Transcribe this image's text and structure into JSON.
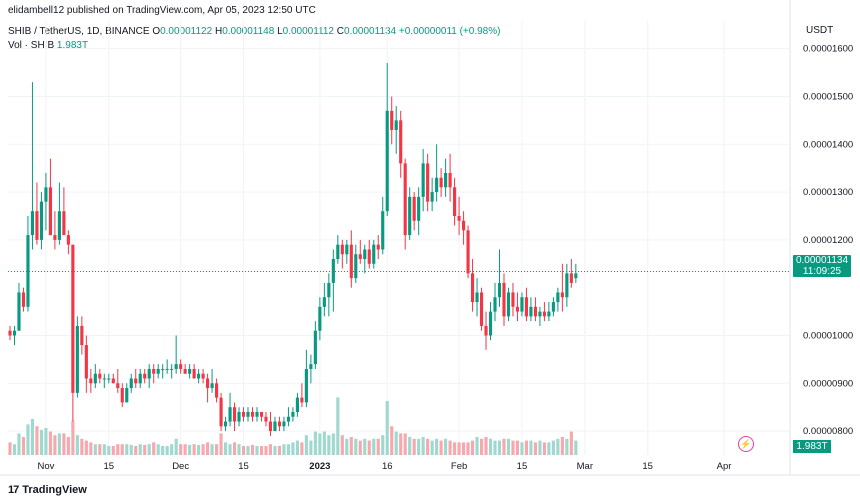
{
  "header": {
    "published": "elidambell12 published on TradingView.com, Apr 05, 2023 12:50 UTC"
  },
  "legend": {
    "symbol": "SHIB / TetherUS, 1D, BINANCE",
    "o_label": "O",
    "o": "0.00001122",
    "h_label": "H",
    "h": "0.00001148",
    "l_label": "L",
    "l": "0.00001112",
    "c_label": "C",
    "c": "0.00001134",
    "change": "+0.00000011 (+0.98%)",
    "vol_label": "Vol · SHIB",
    "vol_value": "1.983T"
  },
  "axis": {
    "currency": "USDT"
  },
  "badges": {
    "price": "0.00001134",
    "countdown": "11:09:25",
    "volume": "1.983T"
  },
  "brand": {
    "logo_text": "TradingView",
    "logo_mark": "17"
  },
  "colors": {
    "up": "#089981",
    "down": "#f23645",
    "up_vol": "#9fd8cf",
    "down_vol": "#f7a8ad",
    "grid": "#f0f3fa"
  },
  "icons": {
    "alert": "lightning-icon",
    "logo": "tradingview-logo-icon"
  },
  "chart_data": {
    "type": "candlestick",
    "y_axis": {
      "ticks": [
        "0.00001600",
        "0.00001500",
        "0.00001400",
        "0.00001300",
        "0.00001200",
        "0.00001000",
        "0.00000900",
        "0.00000800"
      ],
      "tick_values": [
        1.6e-05,
        1.5e-05,
        1.4e-05,
        1.3e-05,
        1.2e-05,
        1e-05,
        9e-06,
        8e-06
      ],
      "range": [
        7.5e-06,
        1.66e-05
      ]
    },
    "x_axis": {
      "labels": [
        "Nov",
        "15",
        "Dec",
        "15",
        "2023",
        "16",
        "Feb",
        "15",
        "Mar",
        "15",
        "Apr"
      ],
      "label_dates": [
        "2022-11-01",
        "2022-11-15",
        "2022-12-01",
        "2022-12-15",
        "2023-01-01",
        "2023-01-16",
        "2023-02-01",
        "2023-02-15",
        "2023-03-01",
        "2023-03-15",
        "2023-04-01"
      ],
      "start_date": "2022-10-24",
      "end_date": "2023-04-05"
    },
    "current_price": 1.134e-05,
    "ohlc": [
      [
        1.01e-05,
        1.02e-05,
        9.9e-06,
        1e-05
      ],
      [
        1e-05,
        1.02e-05,
        9.8e-06,
        1.01e-05
      ],
      [
        1.01e-05,
        1.11e-05,
        1.01e-05,
        1.09e-05
      ],
      [
        1.09e-05,
        1.1e-05,
        1.05e-05,
        1.06e-05
      ],
      [
        1.06e-05,
        1.25e-05,
        1.05e-05,
        1.21e-05
      ],
      [
        1.21e-05,
        1.53e-05,
        1.18e-05,
        1.26e-05
      ],
      [
        1.26e-05,
        1.32e-05,
        1.19e-05,
        1.2e-05
      ],
      [
        1.2e-05,
        1.3e-05,
        1.18e-05,
        1.28e-05
      ],
      [
        1.28e-05,
        1.34e-05,
        1.22e-05,
        1.31e-05
      ],
      [
        1.31e-05,
        1.37e-05,
        1.21e-05,
        1.21e-05
      ],
      [
        1.21e-05,
        1.26e-05,
        1.18e-05,
        1.2e-05
      ],
      [
        1.2e-05,
        1.32e-05,
        1.19e-05,
        1.26e-05
      ],
      [
        1.26e-05,
        1.31e-05,
        1.21e-05,
        1.21e-05
      ],
      [
        1.21e-05,
        1.22e-05,
        1.17e-05,
        1.19e-05
      ],
      [
        1.19e-05,
        1.19e-05,
        8.2e-06,
        8.8e-06
      ],
      [
        8.8e-06,
        1.04e-05,
        8.7e-06,
        1.02e-05
      ],
      [
        1.02e-05,
        1.04e-05,
        9.6e-06,
        9.8e-06
      ],
      [
        9.8e-06,
        1e-05,
        8.8e-06,
        9.1e-06
      ],
      [
        9.1e-06,
        9.3e-06,
        8.8e-06,
        9e-06
      ],
      [
        9e-06,
        9.4e-06,
        8.9e-06,
        9.2e-06
      ],
      [
        9.2e-06,
        9.3e-06,
        9e-06,
        9.1e-06
      ],
      [
        9.1e-06,
        9.2e-06,
        8.9e-06,
        9.1e-06
      ],
      [
        9.1e-06,
        9.2e-06,
        9e-06,
        9.1e-06
      ],
      [
        9.1e-06,
        9.2e-06,
        9e-06,
        9e-06
      ],
      [
        9e-06,
        9.3e-06,
        8.8e-06,
        8.9e-06
      ],
      [
        8.9e-06,
        9e-06,
        8.5e-06,
        8.6e-06
      ],
      [
        8.6e-06,
        9e-06,
        8.6e-06,
        8.9e-06
      ],
      [
        8.9e-06,
        9.2e-06,
        8.8e-06,
        9.1e-06
      ],
      [
        9.1e-06,
        9.3e-06,
        8.9e-06,
        9e-06
      ],
      [
        9e-06,
        9.3e-06,
        8.9e-06,
        9.2e-06
      ],
      [
        9.2e-06,
        9.3e-06,
        9e-06,
        9.1e-06
      ],
      [
        9.1e-06,
        9.4e-06,
        8.9e-06,
        9.3e-06
      ],
      [
        9.3e-06,
        9.4e-06,
        9e-06,
        9.2e-06
      ],
      [
        9.2e-06,
        9.4e-06,
        9.1e-06,
        9.3e-06
      ],
      [
        9.3e-06,
        9.4e-06,
        9.1e-06,
        9.3e-06
      ],
      [
        9.3e-06,
        9.5e-06,
        9.2e-06,
        9.3e-06
      ],
      [
        9.3e-06,
        9.4e-06,
        9.1e-06,
        9.3e-06
      ],
      [
        9.3e-06,
        1e-05,
        9.2e-06,
        9.4e-06
      ],
      [
        9.4e-06,
        9.5e-06,
        9.2e-06,
        9.3e-06
      ],
      [
        9.3e-06,
        9.4e-06,
        9.2e-06,
        9.2e-06
      ],
      [
        9.2e-06,
        9.4e-06,
        9.1e-06,
        9.3e-06
      ],
      [
        9.3e-06,
        9.4e-06,
        9.1e-06,
        9.1e-06
      ],
      [
        9.1e-06,
        9.3e-06,
        9e-06,
        9.2e-06
      ],
      [
        9.2e-06,
        9.3e-06,
        9e-06,
        9.1e-06
      ],
      [
        9.1e-06,
        9.2e-06,
        8.6e-06,
        8.9e-06
      ],
      [
        8.9e-06,
        9.3e-06,
        8.8e-06,
        9e-06
      ],
      [
        9e-06,
        9.1e-06,
        8.6e-06,
        8.7e-06
      ],
      [
        8.7e-06,
        8.8e-06,
        8e-06,
        8.1e-06
      ],
      [
        8.1e-06,
        8.3e-06,
        8e-06,
        8.2e-06
      ],
      [
        8.2e-06,
        8.8e-06,
        8.1e-06,
        8.5e-06
      ],
      [
        8.5e-06,
        8.6e-06,
        8e-06,
        8.2e-06
      ],
      [
        8.2e-06,
        8.5e-06,
        8.1e-06,
        8.4e-06
      ],
      [
        8.4e-06,
        8.5e-06,
        8.2e-06,
        8.3e-06
      ],
      [
        8.3e-06,
        8.5e-06,
        8.2e-06,
        8.4e-06
      ],
      [
        8.4e-06,
        8.5e-06,
        8.2e-06,
        8.3e-06
      ],
      [
        8.3e-06,
        8.5e-06,
        8.2e-06,
        8.4e-06
      ],
      [
        8.4e-06,
        8.4e-06,
        8.2e-06,
        8.3e-06
      ],
      [
        8.3e-06,
        8.4e-06,
        8.1e-06,
        8.2e-06
      ],
      [
        8.2e-06,
        8.4e-06,
        7.9e-06,
        8e-06
      ],
      [
        8e-06,
        8.3e-06,
        8e-06,
        8.2e-06
      ],
      [
        8.2e-06,
        8.3e-06,
        8e-06,
        8.1e-06
      ],
      [
        8.1e-06,
        8.3e-06,
        8e-06,
        8.2e-06
      ],
      [
        8.2e-06,
        8.5e-06,
        8.1e-06,
        8.3e-06
      ],
      [
        8.3e-06,
        8.5e-06,
        8.2e-06,
        8.4e-06
      ],
      [
        8.4e-06,
        8.8e-06,
        8.3e-06,
        8.7e-06
      ],
      [
        8.7e-06,
        9e-06,
        8.5e-06,
        8.6e-06
      ],
      [
        8.6e-06,
        9.7e-06,
        8.5e-06,
        9.3e-06
      ],
      [
        9.3e-06,
        9.6e-06,
        9e-06,
        9.4e-06
      ],
      [
        9.4e-06,
        1.03e-05,
        9.3e-06,
        1.01e-05
      ],
      [
        1.01e-05,
        1.08e-05,
        9.9e-06,
        1.06e-05
      ],
      [
        1.06e-05,
        1.11e-05,
        1.04e-05,
        1.08e-05
      ],
      [
        1.08e-05,
        1.13e-05,
        1.04e-05,
        1.11e-05
      ],
      [
        1.11e-05,
        1.18e-05,
        1.05e-05,
        1.16e-05
      ],
      [
        1.16e-05,
        1.21e-05,
        1.15e-05,
        1.19e-05
      ],
      [
        1.19e-05,
        1.2e-05,
        1.14e-05,
        1.17e-05
      ],
      [
        1.17e-05,
        1.2e-05,
        1.15e-05,
        1.19e-05
      ],
      [
        1.19e-05,
        1.22e-05,
        1.1e-05,
        1.12e-05
      ],
      [
        1.12e-05,
        1.19e-05,
        1.11e-05,
        1.17e-05
      ],
      [
        1.17e-05,
        1.2e-05,
        1.15e-05,
        1.16e-05
      ],
      [
        1.16e-05,
        1.19e-05,
        1.13e-05,
        1.18e-05
      ],
      [
        1.18e-05,
        1.2e-05,
        1.14e-05,
        1.15e-05
      ],
      [
        1.15e-05,
        1.2e-05,
        1.14e-05,
        1.19e-05
      ],
      [
        1.19e-05,
        1.21e-05,
        1.16e-05,
        1.18e-05
      ],
      [
        1.18e-05,
        1.29e-05,
        1.17e-05,
        1.26e-05
      ],
      [
        1.26e-05,
        1.57e-05,
        1.25e-05,
        1.47e-05
      ],
      [
        1.47e-05,
        1.5e-05,
        1.4e-05,
        1.43e-05
      ],
      [
        1.43e-05,
        1.48e-05,
        1.38e-05,
        1.45e-05
      ],
      [
        1.45e-05,
        1.47e-05,
        1.33e-05,
        1.36e-05
      ],
      [
        1.36e-05,
        1.37e-05,
        1.18e-05,
        1.21e-05
      ],
      [
        1.21e-05,
        1.31e-05,
        1.2e-05,
        1.29e-05
      ],
      [
        1.29e-05,
        1.3e-05,
        1.22e-05,
        1.24e-05
      ],
      [
        1.24e-05,
        1.31e-05,
        1.21e-05,
        1.29e-05
      ],
      [
        1.29e-05,
        1.39e-05,
        1.26e-05,
        1.36e-05
      ],
      [
        1.36e-05,
        1.38e-05,
        1.26e-05,
        1.28e-05
      ],
      [
        1.28e-05,
        1.33e-05,
        1.26e-05,
        1.3e-05
      ],
      [
        1.3e-05,
        1.4e-05,
        1.28e-05,
        1.33e-05
      ],
      [
        1.33e-05,
        1.35e-05,
        1.29e-05,
        1.31e-05
      ],
      [
        1.31e-05,
        1.37e-05,
        1.29e-05,
        1.34e-05
      ],
      [
        1.34e-05,
        1.38e-05,
        1.28e-05,
        1.31e-05
      ],
      [
        1.31e-05,
        1.33e-05,
        1.23e-05,
        1.25e-05
      ],
      [
        1.25e-05,
        1.29e-05,
        1.21e-05,
        1.24e-05
      ],
      [
        1.24e-05,
        1.26e-05,
        1.19e-05,
        1.22e-05
      ],
      [
        1.22e-05,
        1.23e-05,
        1.12e-05,
        1.13e-05
      ],
      [
        1.13e-05,
        1.16e-05,
        1.05e-05,
        1.07e-05
      ],
      [
        1.07e-05,
        1.12e-05,
        1.04e-05,
        1.09e-05
      ],
      [
        1.09e-05,
        1.1e-05,
        1.01e-05,
        1.02e-05
      ],
      [
        1.02e-05,
        1.05e-05,
        9.7e-06,
        1e-05
      ],
      [
        1e-05,
        1.07e-05,
        9.9e-06,
        1.05e-05
      ],
      [
        1.05e-05,
        1.11e-05,
        1.03e-05,
        1.08e-05
      ],
      [
        1.08e-05,
        1.18e-05,
        1.06e-05,
        1.11e-05
      ],
      [
        1.11e-05,
        1.13e-05,
        1.02e-05,
        1.04e-05
      ],
      [
        1.04e-05,
        1.1e-05,
        1.03e-05,
        1.09e-05
      ],
      [
        1.09e-05,
        1.11e-05,
        1.04e-05,
        1.06e-05
      ],
      [
        1.06e-05,
        1.09e-05,
        1.03e-05,
        1.05e-05
      ],
      [
        1.05e-05,
        1.09e-05,
        1.04e-05,
        1.08e-05
      ],
      [
        1.08e-05,
        1.1e-05,
        1.03e-05,
        1.04e-05
      ],
      [
        1.04e-05,
        1.08e-05,
        1.03e-05,
        1.06e-05
      ],
      [
        1.06e-05,
        1.08e-05,
        1.03e-05,
        1.04e-05
      ],
      [
        1.04e-05,
        1.06e-05,
        1.02e-05,
        1.05e-05
      ],
      [
        1.05e-05,
        1.07e-05,
        1.03e-05,
        1.04e-05
      ],
      [
        1.04e-05,
        1.07e-05,
        1.03e-05,
        1.05e-05
      ],
      [
        1.05e-05,
        1.08e-05,
        1.04e-05,
        1.07e-05
      ],
      [
        1.07e-05,
        1.1e-05,
        1.05e-05,
        1.09e-05
      ],
      [
        1.09e-05,
        1.15e-05,
        1.05e-05,
        1.08e-05
      ],
      [
        1.08e-05,
        1.15e-05,
        1.06e-05,
        1.13e-05
      ],
      [
        1.13e-05,
        1.16e-05,
        1.1e-05,
        1.11e-05
      ],
      [
        1.12e-05,
        1.15e-05,
        1.11e-05,
        1.13e-05
      ]
    ],
    "volume": [
      0.35,
      0.3,
      0.6,
      0.5,
      0.85,
      1.0,
      0.8,
      0.7,
      0.75,
      0.65,
      0.55,
      0.6,
      0.6,
      0.5,
      0.95,
      0.55,
      0.45,
      0.4,
      0.35,
      0.3,
      0.3,
      0.3,
      0.25,
      0.25,
      0.3,
      0.3,
      0.3,
      0.28,
      0.25,
      0.3,
      0.28,
      0.3,
      0.35,
      0.3,
      0.25,
      0.25,
      0.3,
      0.45,
      0.3,
      0.3,
      0.28,
      0.3,
      0.28,
      0.3,
      0.35,
      0.3,
      0.3,
      0.6,
      0.35,
      0.3,
      0.35,
      0.3,
      0.25,
      0.25,
      0.28,
      0.25,
      0.25,
      0.25,
      0.3,
      0.25,
      0.25,
      0.3,
      0.3,
      0.35,
      0.4,
      0.35,
      0.55,
      0.4,
      0.65,
      0.6,
      0.65,
      0.55,
      0.6,
      1.6,
      0.55,
      0.45,
      0.5,
      0.45,
      0.4,
      0.45,
      0.4,
      0.45,
      0.45,
      0.55,
      1.5,
      0.8,
      0.65,
      0.6,
      0.6,
      0.5,
      0.45,
      0.45,
      0.5,
      0.45,
      0.4,
      0.45,
      0.4,
      0.45,
      0.4,
      0.35,
      0.35,
      0.35,
      0.35,
      0.4,
      0.5,
      0.45,
      0.5,
      0.45,
      0.4,
      0.4,
      0.45,
      0.45,
      0.4,
      0.4,
      0.35,
      0.4,
      0.4,
      0.35,
      0.4,
      0.35,
      0.35,
      0.4,
      0.45,
      0.5,
      0.45,
      0.65,
      0.4,
      0.35
    ]
  }
}
